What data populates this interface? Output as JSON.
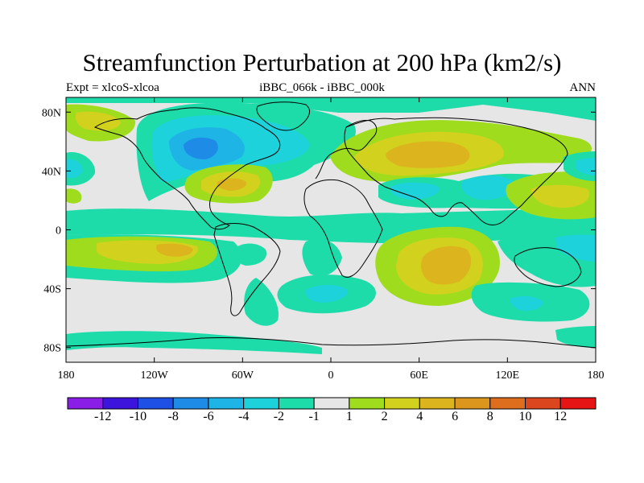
{
  "title": "Streamfunction Perturbation at 200 hPa (km2/s)",
  "subtitle": {
    "left": "Expt = xlcoS-xlcoa",
    "center": "iBBC_066k - iBBC_000k",
    "right": "ANN"
  },
  "axes": {
    "lon_ticks": [
      {
        "lon": -180,
        "label": "180"
      },
      {
        "lon": -120,
        "label": "120W"
      },
      {
        "lon": -60,
        "label": "60W"
      },
      {
        "lon": 0,
        "label": "0"
      },
      {
        "lon": 60,
        "label": "60E"
      },
      {
        "lon": 120,
        "label": "120E"
      },
      {
        "lon": 180,
        "label": "180"
      }
    ],
    "lat_ticks": [
      {
        "lat": 80,
        "label": "80N"
      },
      {
        "lat": 40,
        "label": "40N"
      },
      {
        "lat": 0,
        "label": "0"
      },
      {
        "lat": -40,
        "label": "40S"
      },
      {
        "lat": -80,
        "label": "80S"
      }
    ],
    "lon_range": [
      -180,
      180
    ],
    "lat_range": [
      -90,
      90
    ]
  },
  "colorbar": {
    "colors": [
      "#8a1ee6",
      "#3c14dc",
      "#1e50e6",
      "#1e8ce6",
      "#1eb4e6",
      "#1ed2dc",
      "#1edcaa",
      "#e6e6e6",
      "#a0dc1e",
      "#d2d21e",
      "#dcb41e",
      "#dc961e",
      "#dc6e1e",
      "#dc461e",
      "#e61414"
    ],
    "labels": [
      {
        "after": 1,
        "text": "-12"
      },
      {
        "after": 2,
        "text": "-10"
      },
      {
        "after": 3,
        "text": "-8"
      },
      {
        "after": 4,
        "text": "-6"
      },
      {
        "after": 5,
        "text": "-4"
      },
      {
        "after": 6,
        "text": "-2"
      },
      {
        "after": 7,
        "text": "-1"
      },
      {
        "after": 8,
        "text": "1"
      },
      {
        "after": 9,
        "text": "2"
      },
      {
        "after": 10,
        "text": "4"
      },
      {
        "after": 11,
        "text": "6"
      },
      {
        "after": 12,
        "text": "8"
      },
      {
        "after": 13,
        "text": "10"
      },
      {
        "after": 14,
        "text": "12"
      }
    ]
  },
  "palette": {
    "background": "#e6e6e6",
    "neg1": "#1edcaa",
    "neg2": "#1ed2dc",
    "neg3": "#1eb4e6",
    "neg4": "#1e8ce6",
    "pos1": "#a0dc1e",
    "pos2": "#d2d21e",
    "pos3": "#dcb41e"
  }
}
